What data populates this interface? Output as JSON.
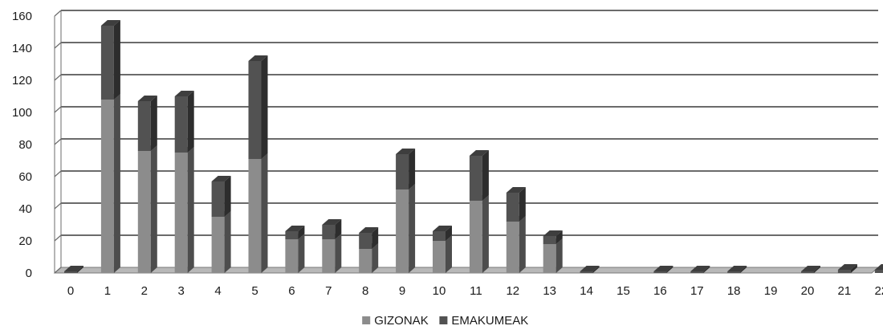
{
  "chart_data": {
    "type": "bar",
    "stacked": true,
    "style": "3d-column",
    "categories": [
      "0",
      "1",
      "2",
      "3",
      "4",
      "5",
      "6",
      "7",
      "8",
      "9",
      "10",
      "11",
      "12",
      "13",
      "14",
      "15",
      "16",
      "17",
      "18",
      "19",
      "20",
      "21",
      "22"
    ],
    "series": [
      {
        "name": "GIZONAK",
        "color": "#8c8c8c",
        "values": [
          0,
          108,
          76,
          75,
          35,
          71,
          21,
          21,
          15,
          52,
          20,
          45,
          32,
          18,
          0,
          0,
          0,
          0,
          0,
          0,
          0,
          0,
          0
        ]
      },
      {
        "name": "EMAKUMEAK",
        "color": "#525252",
        "values": [
          1,
          46,
          31,
          35,
          22,
          61,
          5,
          9,
          10,
          22,
          6,
          28,
          18,
          5,
          1,
          0,
          1,
          1,
          1,
          0,
          1,
          2,
          2
        ]
      }
    ],
    "ylim": [
      0,
      160
    ],
    "yticks": [
      0,
      20,
      40,
      60,
      80,
      100,
      120,
      140,
      160
    ],
    "ytick_labels": [
      "0",
      "20",
      "40",
      "60",
      "80",
      "100",
      "120",
      "140",
      "160"
    ],
    "grid": true,
    "legend_position": "bottom-center",
    "title": "",
    "xlabel": "",
    "ylabel": ""
  }
}
